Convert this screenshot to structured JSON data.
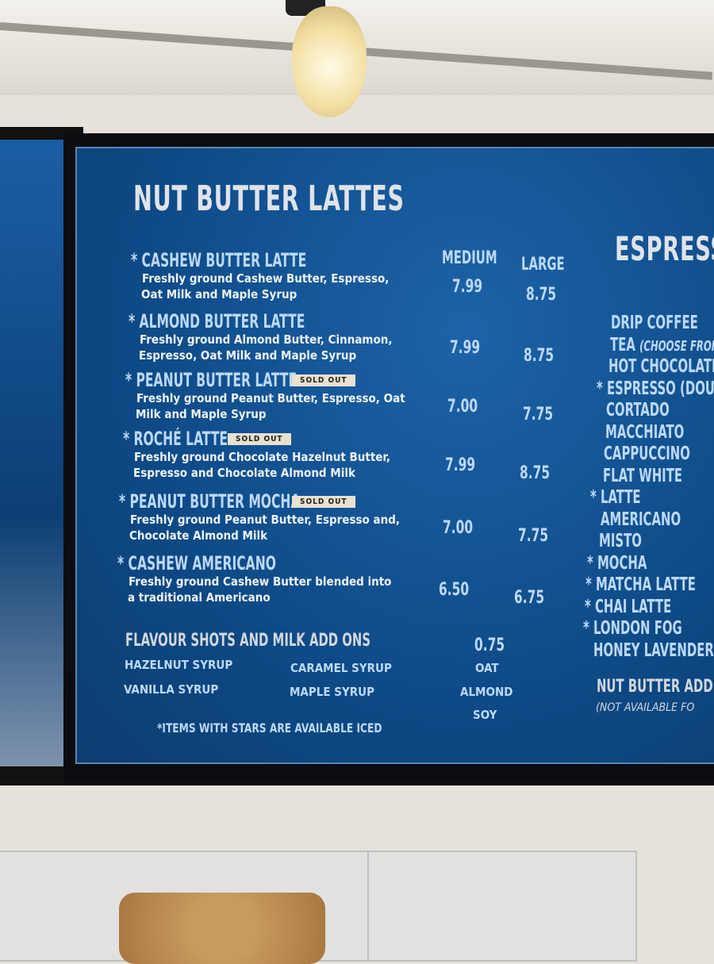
{
  "menu": {
    "title": "NUT BUTTER LATTES",
    "size_headers": [
      "MEDIUM",
      "LARGE"
    ],
    "items": [
      {
        "star": "*",
        "name": "CASHEW BUTTER LATTE",
        "desc1": "Freshly ground Cashew Butter, Espresso,",
        "desc2": "Oat Milk and Maple Syrup",
        "medium": "7.99",
        "large": "8.75",
        "badge": ""
      },
      {
        "star": "*",
        "name": "ALMOND BUTTER LATTE",
        "desc1": "Freshly ground Almond Butter, Cinnamon,",
        "desc2": "Espresso, Oat Milk and Maple Syrup",
        "medium": "7.99",
        "large": "8.75",
        "badge": ""
      },
      {
        "star": "*",
        "name": "PEANUT BUTTER LATTE",
        "desc1": "Freshly ground Peanut Butter, Espresso, Oat",
        "desc2": "Milk and Maple Syrup",
        "medium": "7.00",
        "large": "7.75",
        "badge": "SOLD OUT"
      },
      {
        "star": "*",
        "name": "ROCHÉ LATTE",
        "desc1": "Freshly ground Chocolate Hazelnut Butter,",
        "desc2": "Espresso and Chocolate Almond Milk",
        "medium": "7.99",
        "large": "8.75",
        "badge": "SOLD OUT"
      },
      {
        "star": "*",
        "name": "PEANUT BUTTER MOCHA",
        "desc1": "Freshly ground Peanut Butter, Espresso and,",
        "desc2": "Chocolate Almond Milk",
        "medium": "7.00",
        "large": "7.75",
        "badge": "SOLD OUT"
      },
      {
        "star": "*",
        "name": "CASHEW AMERICANO",
        "desc1": "Freshly ground Cashew Butter blended into",
        "desc2": "a traditional Americano",
        "medium": "6.50",
        "large": "6.75",
        "badge": ""
      }
    ],
    "addons": {
      "title": "FLAVOUR SHOTS AND MILK ADD ONS",
      "price": "0.75",
      "syrups": [
        "HAZELNUT SYRUP",
        "CARAMEL SYRUP",
        "VANILLA SYRUP",
        "MAPLE SYRUP"
      ],
      "milks": [
        "OAT",
        "ALMOND",
        "SOY"
      ]
    },
    "footnote": "*ITEMS WITH STARS ARE AVAILABLE ICED"
  },
  "espresso": {
    "title": "ESPRESS",
    "items": [
      {
        "star": "",
        "name": "DRIP COFFEE"
      },
      {
        "star": "",
        "name": "TEA",
        "note": "(CHOOSE FROM OI"
      },
      {
        "star": "",
        "name": "HOT CHOCOLATE"
      },
      {
        "star": "*",
        "name": "ESPRESSO (DOUBLE"
      },
      {
        "star": "",
        "name": "CORTADO"
      },
      {
        "star": "",
        "name": "MACCHIATO"
      },
      {
        "star": "",
        "name": "CAPPUCCINO"
      },
      {
        "star": "",
        "name": "FLAT WHITE"
      },
      {
        "star": "*",
        "name": "LATTE"
      },
      {
        "star": "",
        "name": "AMERICANO"
      },
      {
        "star": "",
        "name": "MISTO"
      },
      {
        "star": "*",
        "name": "MOCHA"
      },
      {
        "star": "*",
        "name": "MATCHA LATTE"
      },
      {
        "star": "*",
        "name": "CHAI LATTE"
      },
      {
        "star": "*",
        "name": "LONDON FOG"
      },
      {
        "star": "",
        "name": "HONEY LAVENDER LAT"
      }
    ],
    "nut_addon": "NUT BUTTER ADD ON",
    "nut_addon_note": "(NOT AVAILABLE FO"
  }
}
